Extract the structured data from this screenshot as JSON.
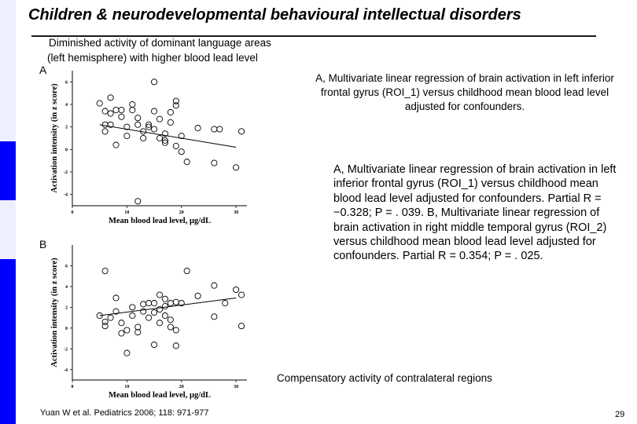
{
  "colors": {
    "sidebar_bright": "#0000ff",
    "sidebar_light": "#eef0ff",
    "title_rule": "#1a1a1a"
  },
  "header": {
    "title": "Children & neurodevelopmental behavioural intellectual disorders"
  },
  "subtitle": {
    "line1": "Diminished activity of dominant language areas",
    "line2": "(left hemisphere) with higher blood lead level"
  },
  "caption_short": "A, Multivariate linear regression of brain activation in left inferior frontal gyrus (ROI_1) versus childhood mean blood lead level adjusted for confounders.",
  "caption_long": "A, Multivariate linear regression of brain activation in left inferior frontal gyrus (ROI_1) versus childhood mean blood lead level adjusted for confounders. Partial R = −0.328; P = . 039. B, Multivariate linear regression of brain activation in right middle temporal gyrus (ROI_2) versus childhood mean blood lead level adjusted for confounders. Partial R = 0.354; P = . 025.",
  "compensatory": "Compensatory activity of contralateral regions",
  "reference": "Yuan W et al. Pediatrics 2006; 118: 971-977",
  "page_number": "29",
  "chart_data": [
    {
      "type": "scatter",
      "panel": "A",
      "xlabel": "Mean blood lead level, µg/dL",
      "ylabel": "Activation intensity (in z score)",
      "xlim": [
        0,
        32
      ],
      "ylim": [
        -5,
        7
      ],
      "xticks": [
        "0",
        "10",
        "20",
        "30"
      ],
      "yticks": [
        "6",
        "4",
        "2",
        "0",
        "-2",
        "-4"
      ],
      "points": [
        [
          5,
          4.1
        ],
        [
          6,
          3.4
        ],
        [
          6,
          2.2
        ],
        [
          6,
          1.6
        ],
        [
          7,
          3.2
        ],
        [
          7,
          2.2
        ],
        [
          7,
          4.6
        ],
        [
          8,
          0.4
        ],
        [
          8,
          3.5
        ],
        [
          9,
          2.9
        ],
        [
          9,
          3.5
        ],
        [
          10,
          2.0
        ],
        [
          10,
          1.2
        ],
        [
          11,
          4.0
        ],
        [
          11,
          3.5
        ],
        [
          12,
          2.8
        ],
        [
          12,
          2.2
        ],
        [
          13,
          1.6
        ],
        [
          13,
          1.0
        ],
        [
          14,
          2.2
        ],
        [
          14,
          2.0
        ],
        [
          15,
          3.4
        ],
        [
          15,
          1.8
        ],
        [
          15,
          6.0
        ],
        [
          16,
          1.0
        ],
        [
          16,
          2.7
        ],
        [
          17,
          1.4
        ],
        [
          17,
          0.6
        ],
        [
          17,
          0.8
        ],
        [
          18,
          2.4
        ],
        [
          18,
          3.3
        ],
        [
          19,
          3.9
        ],
        [
          19,
          4.3
        ],
        [
          19,
          0.3
        ],
        [
          20,
          1.2
        ],
        [
          20,
          -0.2
        ],
        [
          21,
          -1.1
        ],
        [
          23,
          1.9
        ],
        [
          26,
          -1.2
        ],
        [
          26,
          1.8
        ],
        [
          27,
          1.8
        ],
        [
          30,
          -1.6
        ],
        [
          31,
          1.6
        ],
        [
          12,
          -4.6
        ]
      ],
      "trend": [
        [
          5,
          2.2
        ],
        [
          30,
          0.2
        ]
      ]
    },
    {
      "type": "scatter",
      "panel": "B",
      "xlabel": "Mean blood lead level, µg/dL",
      "ylabel": "Activation intensity (in z score)",
      "xlim": [
        0,
        32
      ],
      "ylim": [
        -5,
        8
      ],
      "xticks": [
        "0",
        "10",
        "20",
        "30"
      ],
      "yticks": [
        "6",
        "4",
        "2",
        "0",
        "-2",
        "-4"
      ],
      "points": [
        [
          5,
          1.2
        ],
        [
          6,
          0.6
        ],
        [
          6,
          5.5
        ],
        [
          6,
          0.2
        ],
        [
          7,
          1.0
        ],
        [
          8,
          1.6
        ],
        [
          8,
          2.9
        ],
        [
          9,
          -0.5
        ],
        [
          9,
          0.5
        ],
        [
          10,
          -0.2
        ],
        [
          10,
          -2.4
        ],
        [
          11,
          2.0
        ],
        [
          11,
          1.2
        ],
        [
          12,
          0.1
        ],
        [
          12,
          -0.4
        ],
        [
          13,
          1.6
        ],
        [
          13,
          2.3
        ],
        [
          14,
          2.4
        ],
        [
          14,
          1.0
        ],
        [
          15,
          2.4
        ],
        [
          15,
          -1.6
        ],
        [
          15,
          1.5
        ],
        [
          16,
          0.5
        ],
        [
          16,
          3.2
        ],
        [
          16,
          1.8
        ],
        [
          17,
          1.2
        ],
        [
          17,
          2.8
        ],
        [
          17,
          2.1
        ],
        [
          18,
          0.1
        ],
        [
          18,
          2.4
        ],
        [
          18,
          0.8
        ],
        [
          19,
          2.5
        ],
        [
          19,
          -0.2
        ],
        [
          19,
          -1.7
        ],
        [
          20,
          2.4
        ],
        [
          21,
          5.5
        ],
        [
          23,
          3.1
        ],
        [
          26,
          1.1
        ],
        [
          26,
          4.1
        ],
        [
          28,
          2.4
        ],
        [
          30,
          3.7
        ],
        [
          31,
          0.2
        ],
        [
          31,
          3.2
        ]
      ],
      "trend": [
        [
          5,
          1.2
        ],
        [
          30,
          2.9
        ]
      ]
    }
  ]
}
